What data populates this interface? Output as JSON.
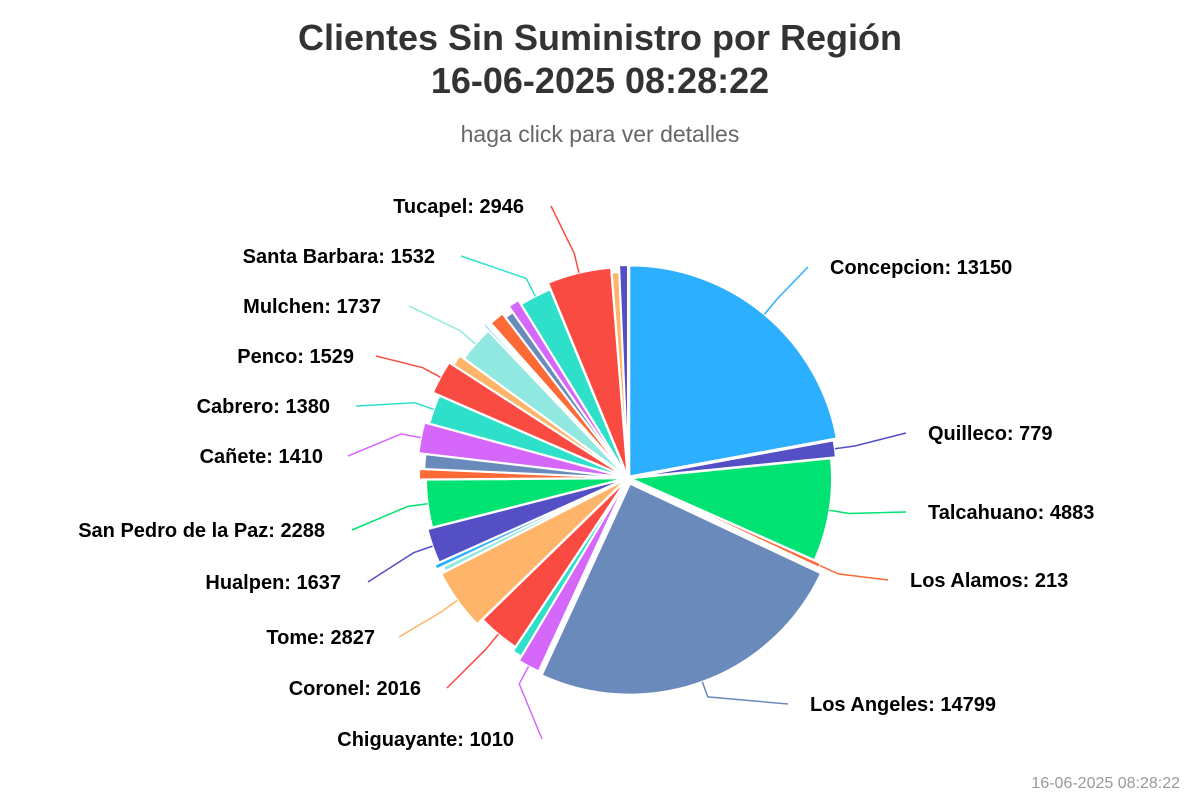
{
  "header": {
    "title_line1": "Clientes Sin Suministro por Región",
    "title_line2": "16-06-2025 08:28:22",
    "subtitle": "haga click para ver detalles"
  },
  "footer": {
    "timestamp": "16-06-2025 08:28:22"
  },
  "chart_data": {
    "type": "pie",
    "title": "Clientes Sin Suministro por Región 16-06-2025 08:28:22",
    "subtitle": "haga click para ver detalles",
    "slices": [
      {
        "name": "Concepcion",
        "value": 13150,
        "color": "#2caffe",
        "label": "Concepcion: 13150"
      },
      {
        "name": "Quilleco",
        "value": 779,
        "color": "#544fc5",
        "label": "Quilleco: 779"
      },
      {
        "name": "Talcahuano",
        "value": 4883,
        "color": "#00e272",
        "label": "Talcahuano: 4883"
      },
      {
        "name": "Los Alamos",
        "value": 213,
        "color": "#fe6a35",
        "label": "Los Alamos: 213"
      },
      {
        "name": "Los Angeles",
        "value": 14799,
        "color": "#6b8abc",
        "label": "Los Angeles: 14799"
      },
      {
        "name": "Chiguayante",
        "value": 1010,
        "color": "#d568fb",
        "label": "Chiguayante: 1010"
      },
      {
        "name": "",
        "value": 450,
        "color": "#2ee0ca",
        "label": ""
      },
      {
        "name": "Coronel",
        "value": 2016,
        "color": "#fa4b42",
        "label": "Coronel: 2016"
      },
      {
        "name": "Tome",
        "value": 2827,
        "color": "#feb56a",
        "label": "Tome: 2827"
      },
      {
        "name": "",
        "value": 250,
        "color": "#91e8e1",
        "label": ""
      },
      {
        "name": "",
        "value": 230,
        "color": "#2caffe",
        "label": ""
      },
      {
        "name": "Hualpen",
        "value": 1637,
        "color": "#544fc5",
        "label": "Hualpen: 1637"
      },
      {
        "name": "San Pedro de la Paz",
        "value": 2288,
        "color": "#00e272",
        "label": "San Pedro de la Paz: 2288"
      },
      {
        "name": "",
        "value": 480,
        "color": "#fe6a35",
        "label": ""
      },
      {
        "name": "",
        "value": 700,
        "color": "#6b8abc",
        "label": ""
      },
      {
        "name": "Cañete",
        "value": 1410,
        "color": "#d568fb",
        "label": "Cañete: 1410"
      },
      {
        "name": "Cabrero",
        "value": 1380,
        "color": "#2ee0ca",
        "label": "Cabrero: 1380"
      },
      {
        "name": "Penco",
        "value": 1529,
        "color": "#fa4b42",
        "label": "Penco: 1529"
      },
      {
        "name": "",
        "value": 520,
        "color": "#feb56a",
        "label": ""
      },
      {
        "name": "Mulchen",
        "value": 1737,
        "color": "#91e8e1",
        "label": "Mulchen: 1737"
      },
      {
        "name": "",
        "value": 120,
        "color": "#2caffe",
        "label": ""
      },
      {
        "name": "",
        "value": 100,
        "color": "#544fc5",
        "label": ""
      },
      {
        "name": "",
        "value": 90,
        "color": "#00e272",
        "label": ""
      },
      {
        "name": "",
        "value": 700,
        "color": "#fe6a35",
        "label": ""
      },
      {
        "name": "",
        "value": 420,
        "color": "#6b8abc",
        "label": ""
      },
      {
        "name": "",
        "value": 520,
        "color": "#d568fb",
        "label": ""
      },
      {
        "name": "Santa Barbara",
        "value": 1532,
        "color": "#2ee0ca",
        "label": "Santa Barbara: 1532"
      },
      {
        "name": "Tucapel",
        "value": 2946,
        "color": "#fa4b42",
        "label": "Tucapel: 2946"
      },
      {
        "name": "",
        "value": 350,
        "color": "#feb56a",
        "label": ""
      },
      {
        "name": "",
        "value": 400,
        "color": "#544fc5",
        "label": ""
      }
    ]
  }
}
